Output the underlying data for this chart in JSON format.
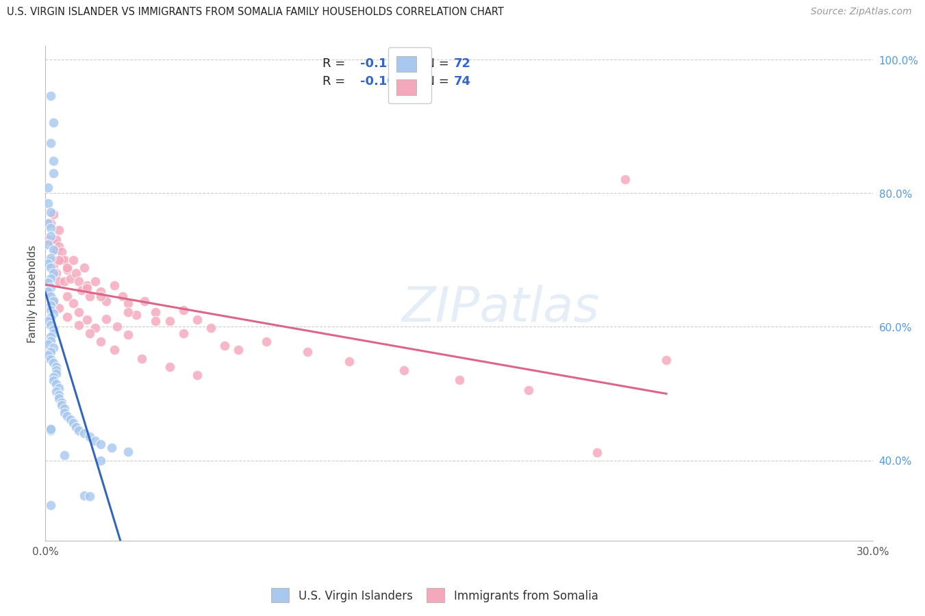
{
  "title": "U.S. VIRGIN ISLANDER VS IMMIGRANTS FROM SOMALIA FAMILY HOUSEHOLDS CORRELATION CHART",
  "source": "Source: ZipAtlas.com",
  "ylabel": "Family Households",
  "xmin": 0.0,
  "xmax": 0.3,
  "ymin": 0.28,
  "ymax": 1.02,
  "blue_R": -0.158,
  "blue_N": 72,
  "pink_R": -0.108,
  "pink_N": 74,
  "blue_color": "#a8c8f0",
  "pink_color": "#f5a8bc",
  "blue_line_color": "#3366bb",
  "pink_line_color": "#dd6688",
  "blue_dashed_color": "#99ccee",
  "grid_color": "#cccccc",
  "background_color": "#ffffff",
  "legend_label_blue": "U.S. Virgin Islanders",
  "legend_label_pink": "Immigrants from Somalia",
  "watermark": "ZIPatlas",
  "right_tick_color": "#5599dd",
  "blue_x": [
    0.002,
    0.003,
    0.002,
    0.003,
    0.003,
    0.001,
    0.001,
    0.002,
    0.001,
    0.002,
    0.002,
    0.001,
    0.003,
    0.002,
    0.001,
    0.002,
    0.003,
    0.002,
    0.001,
    0.002,
    0.001,
    0.002,
    0.003,
    0.002,
    0.002,
    0.003,
    0.002,
    0.001,
    0.002,
    0.003,
    0.003,
    0.002,
    0.002,
    0.001,
    0.003,
    0.002,
    0.001,
    0.002,
    0.003,
    0.004,
    0.004,
    0.004,
    0.003,
    0.003,
    0.004,
    0.005,
    0.004,
    0.005,
    0.005,
    0.006,
    0.006,
    0.007,
    0.007,
    0.008,
    0.009,
    0.01,
    0.011,
    0.012,
    0.014,
    0.016,
    0.018,
    0.02,
    0.024,
    0.03,
    0.007,
    0.02,
    0.002,
    0.002,
    0.002,
    0.014,
    0.016,
    0.002
  ],
  "blue_y": [
    0.945,
    0.905,
    0.875,
    0.848,
    0.83,
    0.808,
    0.785,
    0.771,
    0.755,
    0.748,
    0.735,
    0.723,
    0.715,
    0.703,
    0.694,
    0.688,
    0.68,
    0.672,
    0.666,
    0.659,
    0.652,
    0.645,
    0.638,
    0.632,
    0.625,
    0.62,
    0.614,
    0.608,
    0.602,
    0.596,
    0.59,
    0.585,
    0.579,
    0.574,
    0.568,
    0.562,
    0.557,
    0.551,
    0.546,
    0.54,
    0.535,
    0.53,
    0.524,
    0.519,
    0.514,
    0.508,
    0.503,
    0.498,
    0.493,
    0.487,
    0.482,
    0.477,
    0.471,
    0.466,
    0.461,
    0.456,
    0.45,
    0.445,
    0.44,
    0.435,
    0.429,
    0.424,
    0.419,
    0.413,
    0.408,
    0.4,
    0.445,
    0.448,
    0.447,
    0.347,
    0.346,
    0.333
  ],
  "pink_x": [
    0.001,
    0.002,
    0.003,
    0.002,
    0.003,
    0.004,
    0.003,
    0.004,
    0.005,
    0.004,
    0.005,
    0.006,
    0.005,
    0.006,
    0.007,
    0.007,
    0.008,
    0.009,
    0.01,
    0.011,
    0.012,
    0.013,
    0.014,
    0.015,
    0.016,
    0.018,
    0.02,
    0.022,
    0.025,
    0.028,
    0.03,
    0.033,
    0.036,
    0.04,
    0.045,
    0.05,
    0.055,
    0.06,
    0.008,
    0.01,
    0.012,
    0.015,
    0.018,
    0.022,
    0.026,
    0.03,
    0.003,
    0.005,
    0.008,
    0.012,
    0.016,
    0.02,
    0.025,
    0.035,
    0.045,
    0.055,
    0.005,
    0.008,
    0.015,
    0.02,
    0.03,
    0.04,
    0.05,
    0.065,
    0.07,
    0.08,
    0.095,
    0.11,
    0.13,
    0.15,
    0.175,
    0.2,
    0.225,
    0.21
  ],
  "pink_y": [
    0.73,
    0.755,
    0.725,
    0.698,
    0.768,
    0.73,
    0.692,
    0.715,
    0.745,
    0.68,
    0.72,
    0.7,
    0.668,
    0.712,
    0.7,
    0.668,
    0.685,
    0.672,
    0.7,
    0.68,
    0.668,
    0.655,
    0.688,
    0.662,
    0.645,
    0.668,
    0.652,
    0.638,
    0.662,
    0.645,
    0.635,
    0.618,
    0.638,
    0.622,
    0.608,
    0.625,
    0.61,
    0.598,
    0.645,
    0.635,
    0.622,
    0.61,
    0.598,
    0.612,
    0.6,
    0.588,
    0.64,
    0.628,
    0.615,
    0.602,
    0.59,
    0.578,
    0.565,
    0.552,
    0.54,
    0.528,
    0.7,
    0.688,
    0.658,
    0.645,
    0.622,
    0.608,
    0.59,
    0.572,
    0.565,
    0.578,
    0.562,
    0.548,
    0.535,
    0.52,
    0.505,
    0.412,
    0.55,
    0.82
  ]
}
